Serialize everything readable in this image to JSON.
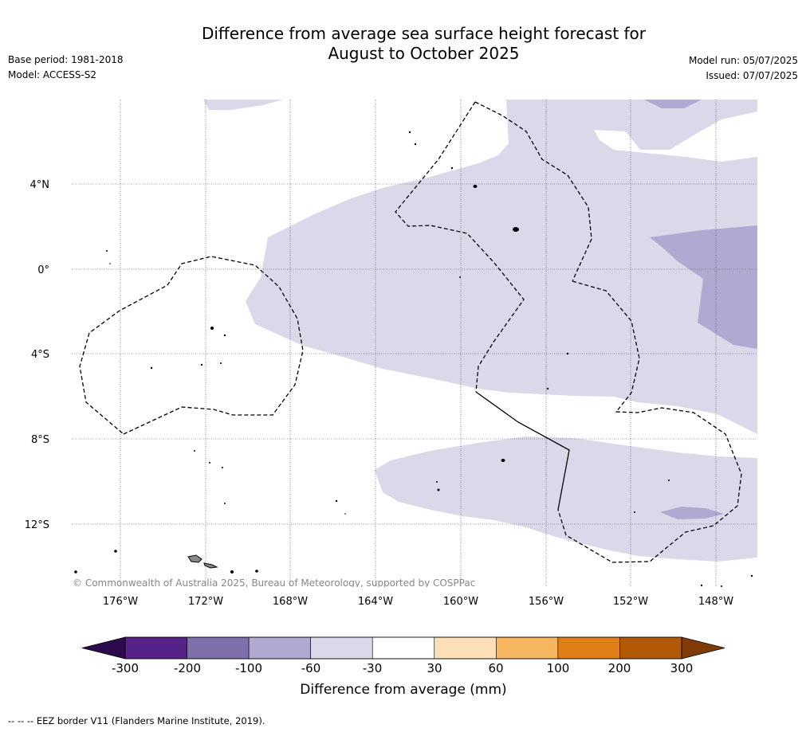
{
  "title": {
    "line1": "Difference from average sea surface height forecast for",
    "line2": "August to October 2025"
  },
  "meta_left": {
    "base_period": "Base period: 1981-2018",
    "model": "Model: ACCESS-S2"
  },
  "meta_right": {
    "model_run": "Model run: 05/07/2025",
    "issued": "Issued: 07/07/2025"
  },
  "map": {
    "lat_labels": [
      "4°N",
      "0°",
      "4°S",
      "8°S",
      "12°S"
    ],
    "lon_labels": [
      "176°W",
      "172°W",
      "168°W",
      "164°W",
      "160°W",
      "156°W",
      "152°W",
      "148°W"
    ],
    "copyright": "© Commonwealth of Australia 2025, Bureau of Meteorology, supported by COSPPac"
  },
  "colorbar": {
    "label": "Difference from average (mm)",
    "ticks": [
      "-300",
      "-200",
      "-100",
      "-60",
      "-30",
      "30",
      "60",
      "100",
      "200",
      "300"
    ],
    "colors": [
      "#56228a",
      "#7f70ab",
      "#b0a9d1",
      "#d9d9ea",
      "#ffffff",
      "#fde0b7",
      "#f8b55f",
      "#e07f18",
      "#b35807"
    ],
    "low_extend_color": "#2d0a4d",
    "high_extend_color": "#7f3b08"
  },
  "footer": {
    "legend": "--  --  -- EEZ border V11 (Flanders Marine Institute, 2019)."
  }
}
